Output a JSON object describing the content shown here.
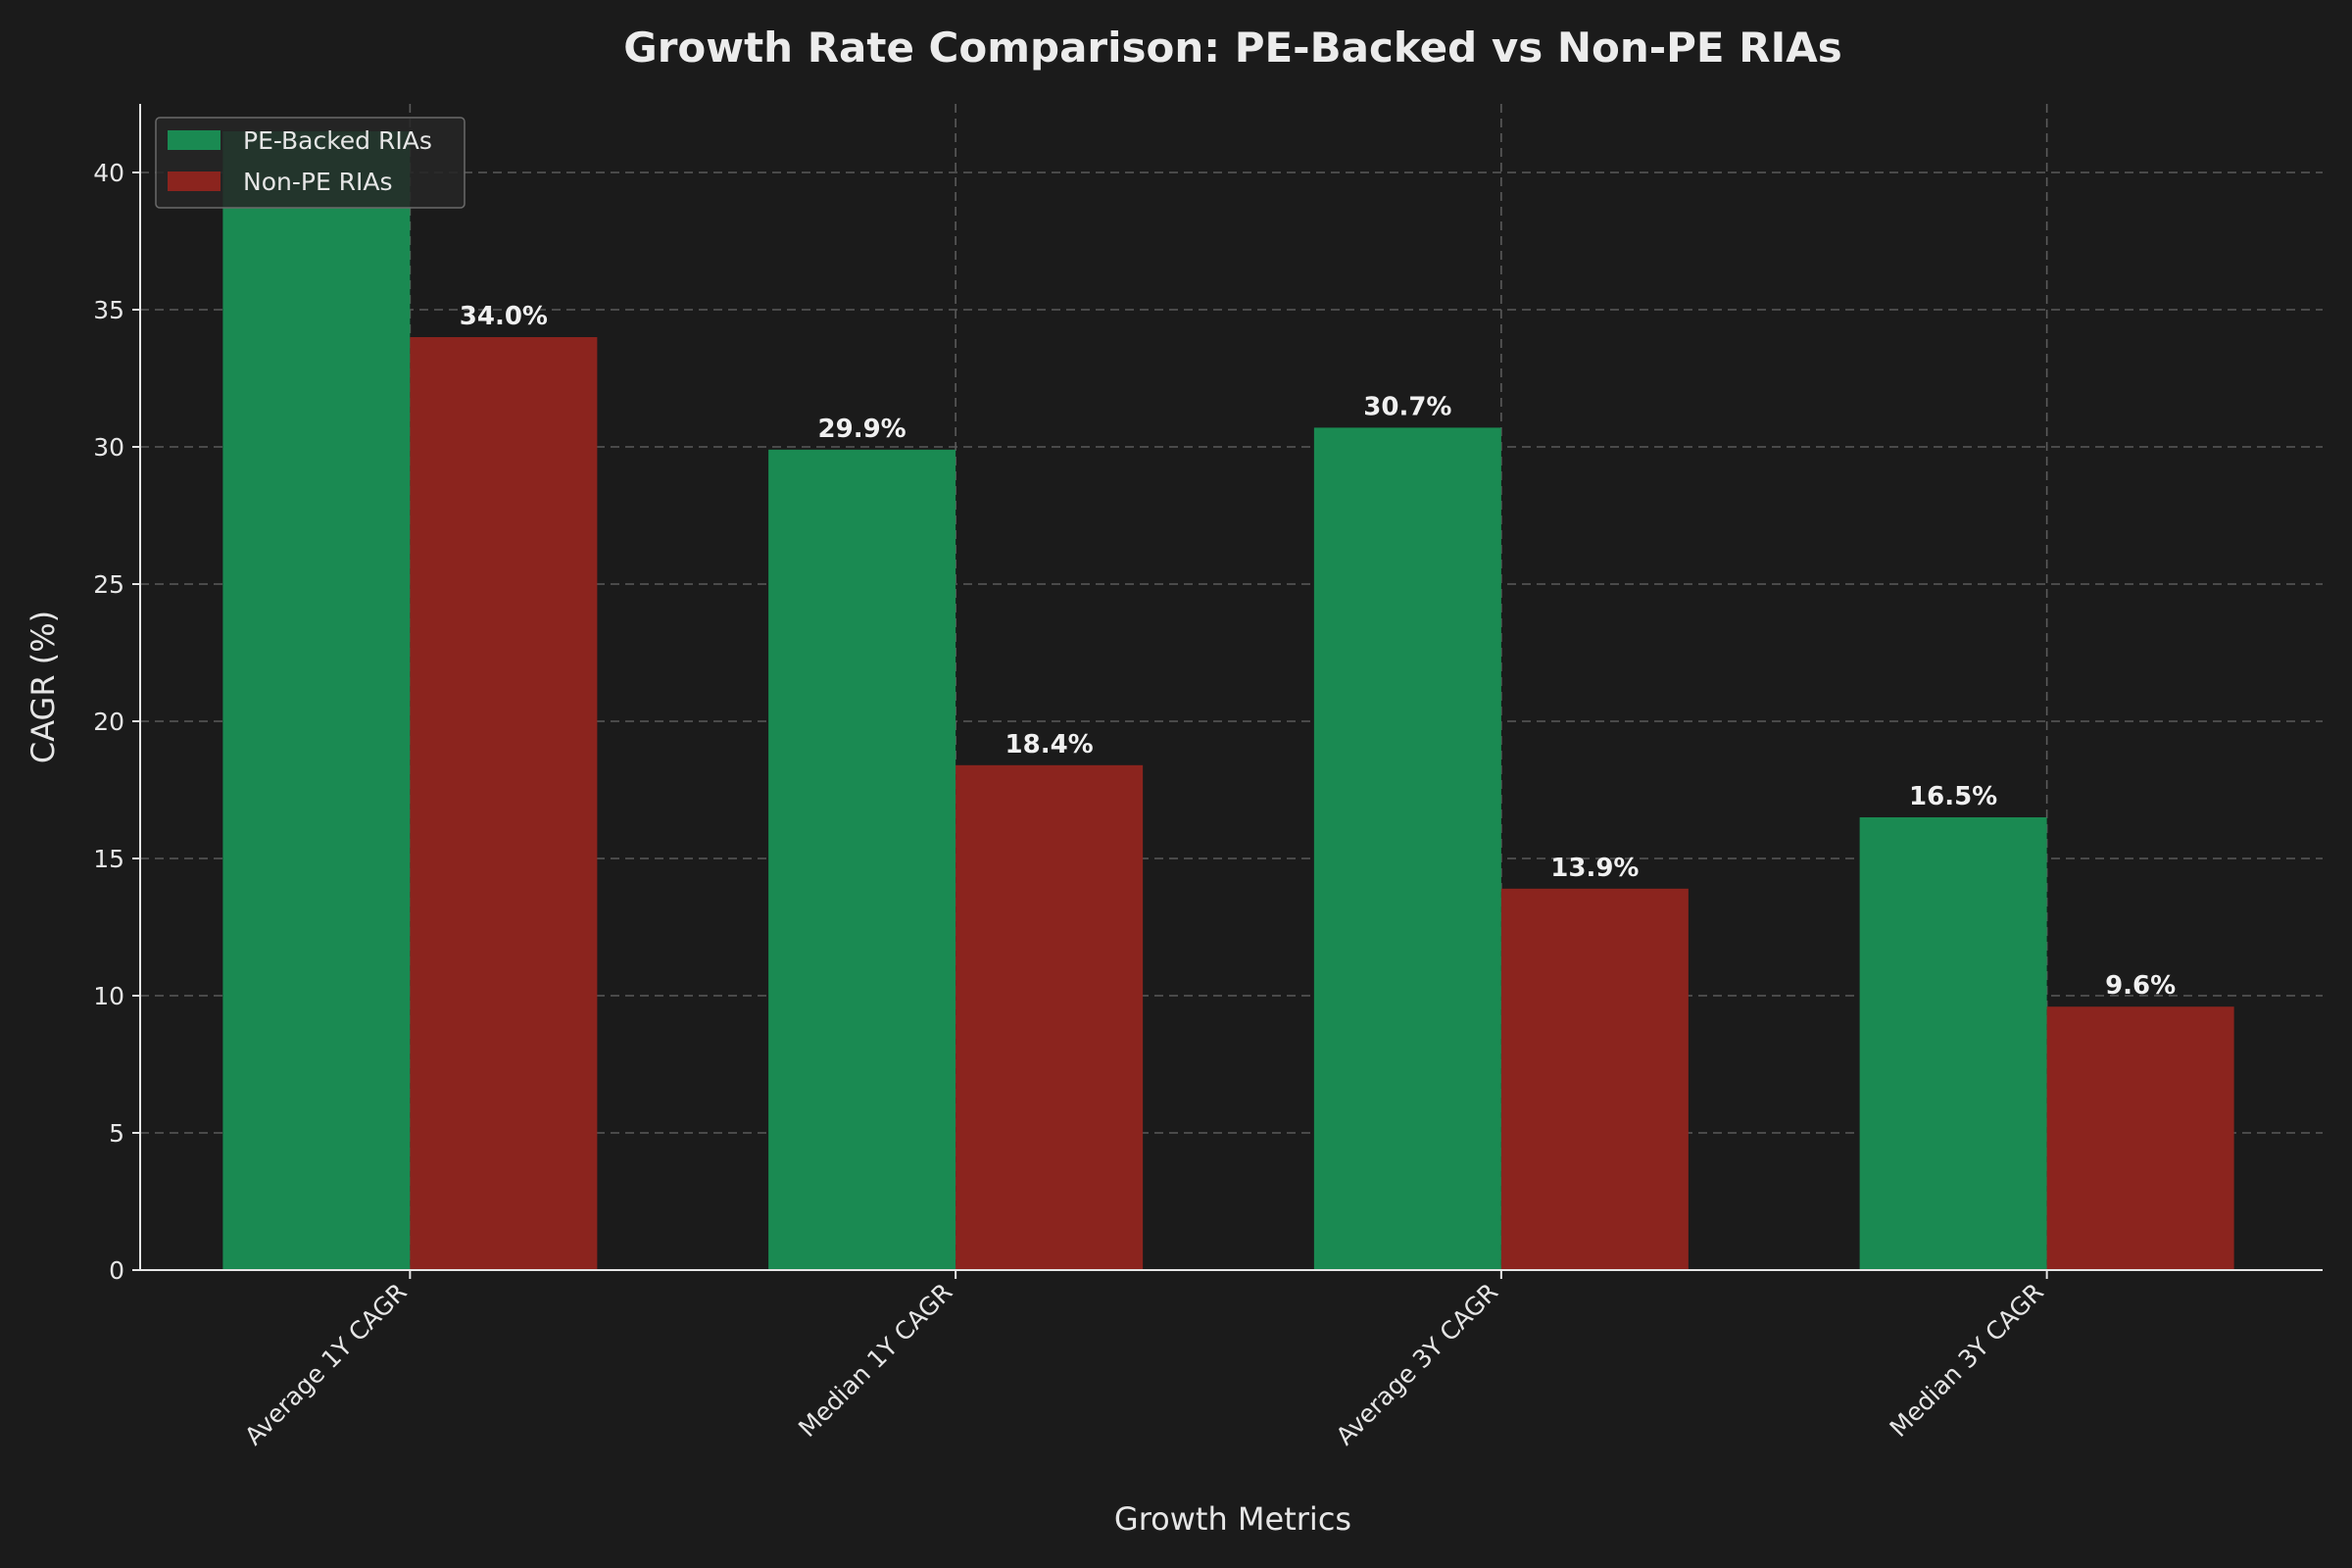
{
  "chart_data": {
    "type": "bar",
    "title": "Growth Rate Comparison: PE-Backed vs Non-PE RIAs",
    "xlabel": "Growth Metrics",
    "ylabel": "CAGR (%)",
    "categories": [
      "Average 1Y CAGR",
      "Median 1Y CAGR",
      "Average 3Y CAGR",
      "Median 3Y CAGR"
    ],
    "series": [
      {
        "name": "PE-Backed RIAs",
        "color": "#1a8a52",
        "values": [
          41.5,
          29.9,
          30.7,
          16.5
        ],
        "labels": [
          "",
          "29.9%",
          "30.7%",
          "16.5%"
        ]
      },
      {
        "name": "Non-PE RIAs",
        "color": "#8b241e",
        "values": [
          34.0,
          18.4,
          13.9,
          9.6
        ],
        "labels": [
          "34.0%",
          "18.4%",
          "13.9%",
          "9.6%"
        ]
      }
    ],
    "ylim": [
      0,
      42.5
    ],
    "yticks": [
      0,
      5,
      10,
      15,
      20,
      25,
      30,
      35,
      40
    ],
    "ytick_labels": [
      "0",
      "5",
      "10",
      "15",
      "20",
      "25",
      "30",
      "35",
      "40"
    ],
    "grid": true,
    "legend_position": "top-left",
    "background": "#1b1b1b"
  }
}
